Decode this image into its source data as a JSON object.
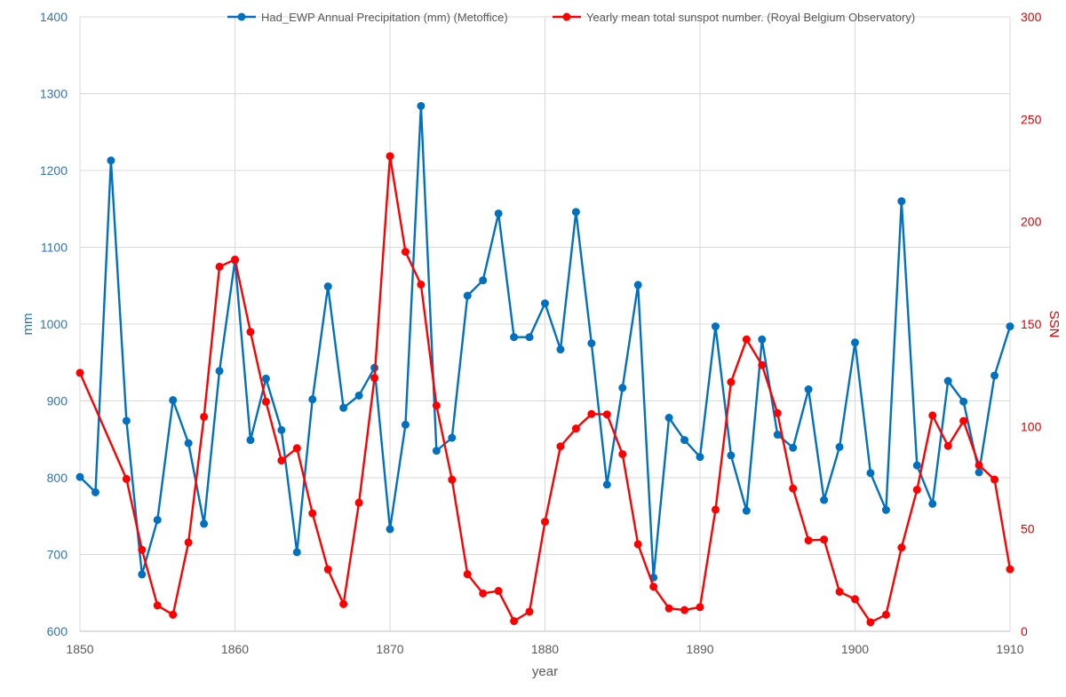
{
  "chart_data": {
    "type": "line",
    "xlabel": "year",
    "ylabel_left": "mm",
    "ylabel_right": "SSN",
    "xlim": [
      1850,
      1910
    ],
    "ylim_left": [
      600,
      1400
    ],
    "ylim_right": [
      0,
      300
    ],
    "x_ticks": [
      "1850",
      "1860",
      "1870",
      "1880",
      "1890",
      "1900",
      "1910"
    ],
    "y_left_ticks": [
      "600",
      "700",
      "800",
      "900",
      "1000",
      "1100",
      "1200",
      "1300",
      "1400"
    ],
    "y_right_ticks": [
      "0",
      "50",
      "100",
      "150",
      "200",
      "250",
      "300"
    ],
    "grid": true,
    "legend_position": "top",
    "series": [
      {
        "name": "Had_EWP Annual Precipitation (mm) (Metoffice)",
        "axis": "left",
        "color": "#0070c0",
        "x": [
          1850,
          1851,
          1852,
          1853,
          1854,
          1855,
          1856,
          1857,
          1858,
          1859,
          1860,
          1861,
          1862,
          1863,
          1864,
          1865,
          1866,
          1867,
          1868,
          1869,
          1870,
          1871,
          1872,
          1873,
          1874,
          1875,
          1876,
          1877,
          1878,
          1879,
          1880,
          1881,
          1882,
          1883,
          1884,
          1885,
          1886,
          1887,
          1888,
          1889,
          1890,
          1891,
          1892,
          1893,
          1894,
          1895,
          1896,
          1897,
          1898,
          1899,
          1900,
          1901,
          1902,
          1903,
          1904,
          1905,
          1906,
          1907,
          1908,
          1909,
          1910
        ],
        "values": [
          801,
          781,
          1213,
          874,
          674,
          745,
          901,
          845,
          740,
          939,
          1083,
          849,
          929,
          862,
          703,
          902,
          1049,
          891,
          907,
          943,
          733,
          869,
          1284,
          835,
          852,
          1037,
          1057,
          1144,
          983,
          983,
          1027,
          967,
          1146,
          975,
          791,
          917,
          1051,
          670,
          878,
          849,
          827,
          997,
          829,
          757,
          980,
          856,
          839,
          915,
          771,
          840,
          976,
          806,
          758,
          1160,
          816,
          766,
          926,
          899,
          807,
          933,
          997
        ]
      },
      {
        "name": "Yearly mean total sunspot number. (Royal Belgium Observatory)",
        "axis": "right",
        "color": "#ff0000",
        "x": [
          1850,
          1853,
          1854,
          1855,
          1856,
          1857,
          1858,
          1859,
          1860,
          1861,
          1862,
          1863,
          1864,
          1865,
          1866,
          1867,
          1868,
          1869,
          1870,
          1871,
          1872,
          1873,
          1874,
          1875,
          1876,
          1877,
          1878,
          1879,
          1880,
          1881,
          1882,
          1883,
          1884,
          1885,
          1886,
          1887,
          1888,
          1889,
          1890,
          1891,
          1892,
          1893,
          1894,
          1895,
          1896,
          1897,
          1898,
          1899,
          1900,
          1901,
          1902,
          1903,
          1904,
          1905,
          1906,
          1907,
          1908,
          1909,
          1910
        ],
        "values": [
          126.2,
          74.4,
          39.8,
          12.6,
          8.1,
          43.4,
          104.7,
          178.0,
          181.5,
          146.2,
          112.1,
          83.4,
          89.4,
          57.6,
          30.2,
          13.3,
          62.8,
          123.7,
          232.0,
          185.3,
          169.3,
          110.2,
          74.0,
          27.9,
          18.5,
          19.7,
          5.0,
          9.6,
          53.5,
          90.3,
          99.0,
          106.1,
          105.9,
          86.5,
          42.5,
          21.8,
          11.2,
          10.4,
          11.8,
          59.4,
          121.7,
          142.5,
          130.0,
          106.5,
          69.7,
          44.4,
          44.8,
          19.3,
          15.7,
          4.4,
          8.1,
          40.9,
          69.1,
          105.4,
          90.5,
          102.7,
          81.1,
          74.1,
          30.3
        ]
      }
    ]
  }
}
